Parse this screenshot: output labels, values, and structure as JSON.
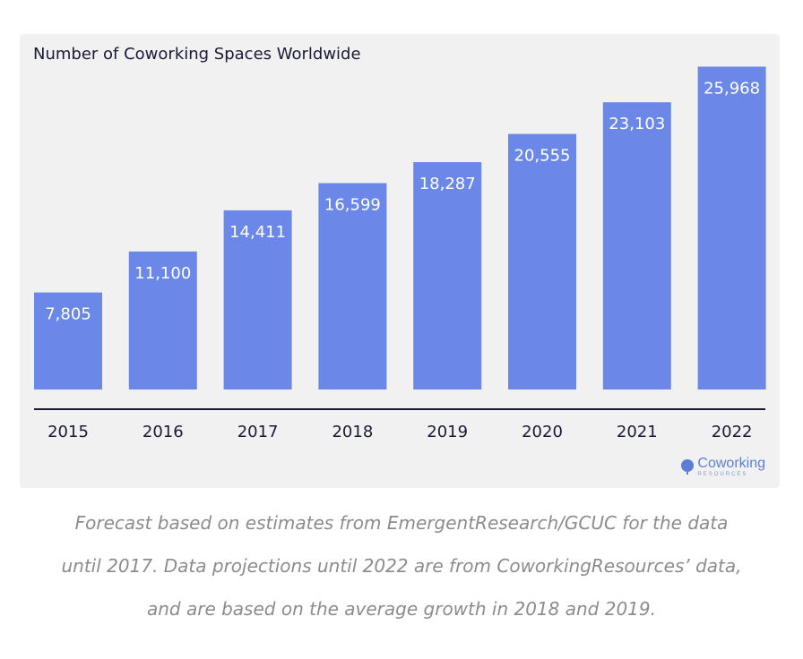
{
  "chart_data": {
    "type": "bar",
    "title": "Number of Coworking Spaces Worldwide",
    "categories": [
      "2015",
      "2016",
      "2017",
      "2018",
      "2019",
      "2020",
      "2021",
      "2022"
    ],
    "values": [
      7805,
      11100,
      14411,
      16599,
      18287,
      20555,
      23103,
      25968
    ],
    "value_labels": [
      "7,805",
      "11,100",
      "14,411",
      "16,599",
      "18,287",
      "20,555",
      "23,103",
      "25,968"
    ],
    "xlabel": "",
    "ylabel": "",
    "ylim": [
      0,
      26000
    ],
    "grid": false,
    "bar_color": "#6b88e8"
  },
  "logo": {
    "name": "Coworking",
    "sub": "RESOURCES"
  },
  "caption": {
    "line1": "Forecast based on estimates from EmergentResearch/GCUC for the data",
    "line2": "until 2017. Data projections until 2022 are from CoworkingResources’ data,",
    "line3": "and are based on the average growth in 2018 and 2019."
  }
}
